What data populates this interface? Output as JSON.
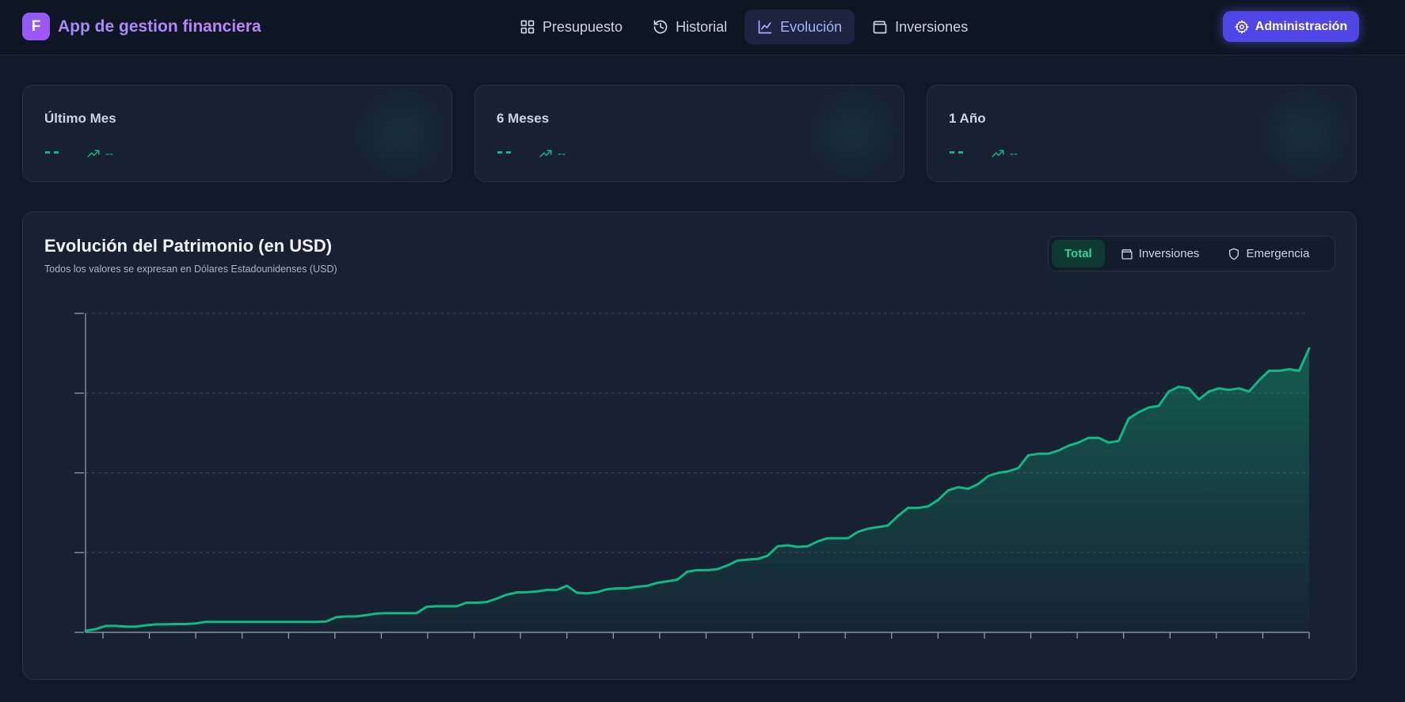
{
  "app": {
    "logo_letter": "F",
    "title": "App de gestion financiera"
  },
  "nav": [
    {
      "label": "Presupuesto",
      "icon": "grid-icon",
      "active": false
    },
    {
      "label": "Historial",
      "icon": "history-icon",
      "active": false
    },
    {
      "label": "Evolución",
      "icon": "line-chart-icon",
      "active": true
    },
    {
      "label": "Inversiones",
      "icon": "wallet-icon",
      "active": false
    }
  ],
  "admin_button": {
    "label": "Administración",
    "icon": "gear-icon"
  },
  "cards": [
    {
      "label": "Último Mes",
      "value": "--",
      "trend": "--",
      "trend_icon": "trending-up-icon"
    },
    {
      "label": "6 Meses",
      "value": "--",
      "trend": "--",
      "trend_icon": "trending-up-icon"
    },
    {
      "label": "1 Año",
      "value": "--",
      "trend": "--",
      "trend_icon": "trending-up-icon"
    }
  ],
  "chart_panel": {
    "title": "Evolución del Patrimonio (en USD)",
    "subtitle": "Todos los valores se expresan en Dólares Estadounidenses (USD)",
    "segments": [
      {
        "label": "Total",
        "icon": "",
        "active": true
      },
      {
        "label": "Inversiones",
        "icon": "wallet-icon",
        "active": false
      },
      {
        "label": "Emergencia",
        "icon": "shield-icon",
        "active": false
      }
    ]
  },
  "colors": {
    "accent": "#10b981",
    "brand": "#8b5cf6",
    "admin": "#4f46e5",
    "bg": "#111827"
  },
  "chart_data": {
    "type": "area",
    "title": "Evolución del Patrimonio (en USD)",
    "xlabel": "",
    "ylabel": "",
    "ylim": [
      0,
      100
    ],
    "y_ticks": 5,
    "x_ticks": 27,
    "grid": true,
    "values": [
      0.5,
      1.0,
      2.0,
      2.0,
      1.8,
      1.8,
      2.2,
      2.5,
      2.5,
      2.6,
      2.6,
      2.8,
      3.3,
      3.3,
      3.3,
      3.3,
      3.3,
      3.3,
      3.3,
      3.3,
      3.3,
      3.3,
      3.3,
      3.3,
      3.4,
      4.8,
      5.0,
      5.0,
      5.4,
      5.9,
      6.0,
      6.0,
      6.0,
      6.0,
      8.0,
      8.2,
      8.2,
      8.2,
      9.3,
      9.3,
      9.5,
      10.6,
      11.8,
      12.5,
      12.6,
      12.8,
      13.3,
      13.3,
      14.6,
      12.4,
      12.2,
      12.6,
      13.5,
      13.8,
      13.8,
      14.3,
      14.6,
      15.5,
      16.0,
      16.5,
      19.0,
      19.5,
      19.5,
      19.8,
      21.0,
      22.5,
      22.8,
      23.0,
      24.0,
      27.0,
      27.3,
      26.8,
      27.0,
      28.5,
      29.5,
      29.5,
      29.5,
      31.5,
      32.5,
      33.0,
      33.5,
      36.5,
      39.0,
      39.0,
      39.5,
      41.5,
      44.5,
      45.5,
      45.0,
      46.5,
      49.0,
      50.0,
      50.5,
      51.5,
      55.5,
      56.0,
      56.0,
      57.0,
      58.5,
      59.5,
      61.0,
      61.0,
      59.5,
      60.0,
      67.0,
      69.0,
      70.5,
      71.0,
      75.5,
      77.0,
      76.5,
      73.0,
      75.5,
      76.5,
      76.0,
      76.5,
      75.5,
      79.0,
      82.0,
      82.0,
      82.5,
      82.0,
      89.0
    ]
  }
}
